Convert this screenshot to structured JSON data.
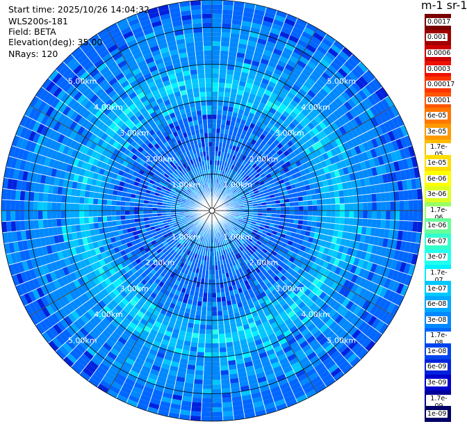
{
  "header": {
    "start_time": "Start time: 2025/10/26 14:04:32",
    "instrument": "WLS200s-181",
    "field": "Field: BETA",
    "elevation": "Elevation(deg): 35.00",
    "nrays": "NRays: 120"
  },
  "colorbar": {
    "title": "m-1 sr-1",
    "labels": [
      "0.0017",
      "0.001",
      "0.0006",
      "0.0003",
      "0.00017",
      "0.0001",
      "6e-05",
      "3e-05",
      "1.7e-05",
      "1e-05",
      "6e-06",
      "3e-06",
      "1.7e-06",
      "1e-06",
      "6e-07",
      "3e-07",
      "1.7e-07",
      "1e-07",
      "6e-08",
      "3e-08",
      "1.7e-08",
      "1e-08",
      "6e-09",
      "3e-09",
      "1.7e-09",
      "1e-09"
    ],
    "colors": [
      "#7a0000",
      "#a00000",
      "#cc0000",
      "#ee1100",
      "#ff3300",
      "#ff5500",
      "#ff7700",
      "#ff9900",
      "#ffbb00",
      "#ffdd00",
      "#ffff00",
      "#ddff22",
      "#99ff66",
      "#66ff99",
      "#33ffcc",
      "#22ffee",
      "#00f0ff",
      "#00c8ff",
      "#00a8ff",
      "#0088ff",
      "#0066ff",
      "#0044ee",
      "#0022dd",
      "#0000cc",
      "#000099",
      "#000066"
    ]
  },
  "chart_data": {
    "type": "heatmap",
    "projection": "polar PPI",
    "field": "BETA",
    "elevation_deg": 35.0,
    "n_rays": 120,
    "range_rings_km": [
      1.0,
      2.0,
      3.0,
      4.0,
      5.0
    ],
    "ring_labels": [
      "1.00km",
      "2.00km",
      "3.00km",
      "4.00km",
      "5.00km"
    ],
    "max_range_km": 5.75,
    "value_profile": [
      {
        "range_km": 0.5,
        "beta": 3e-08
      },
      {
        "range_km": 1.5,
        "beta": 2e-08
      },
      {
        "range_km": 2.5,
        "beta": 2e-08
      },
      {
        "range_km": 3.5,
        "beta": 1e-07
      },
      {
        "range_km": 4.2,
        "beta": 3e-08
      },
      {
        "range_km": 5.5,
        "beta": 2e-08
      }
    ]
  }
}
